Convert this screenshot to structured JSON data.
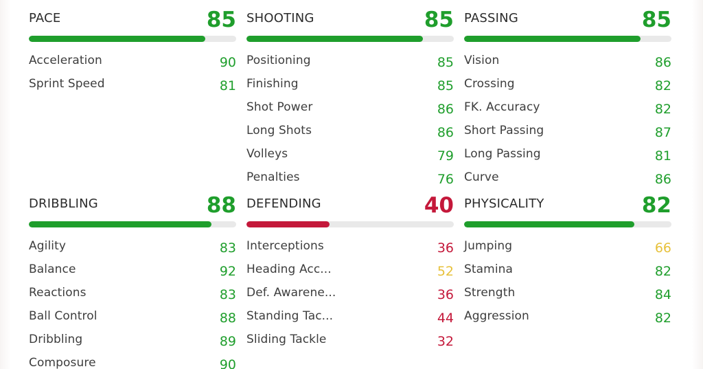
{
  "colors": {
    "high": "#1f9e2c",
    "mid": "#e7c13b",
    "low": "#c4183a",
    "track": "#e9e9e9"
  },
  "sections": [
    {
      "title": "PACE",
      "value": 85,
      "stats": [
        {
          "label": "Acceleration",
          "value": 90
        },
        {
          "label": "Sprint Speed",
          "value": 81
        }
      ]
    },
    {
      "title": "SHOOTING",
      "value": 85,
      "stats": [
        {
          "label": "Positioning",
          "value": 85
        },
        {
          "label": "Finishing",
          "value": 85
        },
        {
          "label": "Shot Power",
          "value": 86
        },
        {
          "label": "Long Shots",
          "value": 86
        },
        {
          "label": "Volleys",
          "value": 79
        },
        {
          "label": "Penalties",
          "value": 76
        }
      ]
    },
    {
      "title": "PASSING",
      "value": 85,
      "stats": [
        {
          "label": "Vision",
          "value": 86
        },
        {
          "label": "Crossing",
          "value": 82
        },
        {
          "label": "FK. Accuracy",
          "value": 82
        },
        {
          "label": "Short Passing",
          "value": 87
        },
        {
          "label": "Long Passing",
          "value": 81
        },
        {
          "label": "Curve",
          "value": 86
        }
      ]
    },
    {
      "title": "DRIBBLING",
      "value": 88,
      "stats": [
        {
          "label": "Agility",
          "value": 83
        },
        {
          "label": "Balance",
          "value": 92
        },
        {
          "label": "Reactions",
          "value": 83
        },
        {
          "label": "Ball Control",
          "value": 88
        },
        {
          "label": "Dribbling",
          "value": 89
        },
        {
          "label": "Composure",
          "value": 90
        }
      ]
    },
    {
      "title": "DEFENDING",
      "value": 40,
      "stats": [
        {
          "label": "Interceptions",
          "value": 36
        },
        {
          "label": "Heading Acc...",
          "value": 52
        },
        {
          "label": "Def. Awarene...",
          "value": 36
        },
        {
          "label": "Standing Tac...",
          "value": 44
        },
        {
          "label": "Sliding Tackle",
          "value": 32
        }
      ]
    },
    {
      "title": "PHYSICALITY",
      "value": 82,
      "stats": [
        {
          "label": "Jumping",
          "value": 66
        },
        {
          "label": "Stamina",
          "value": 82
        },
        {
          "label": "Strength",
          "value": 84
        },
        {
          "label": "Aggression",
          "value": 82
        }
      ]
    }
  ]
}
